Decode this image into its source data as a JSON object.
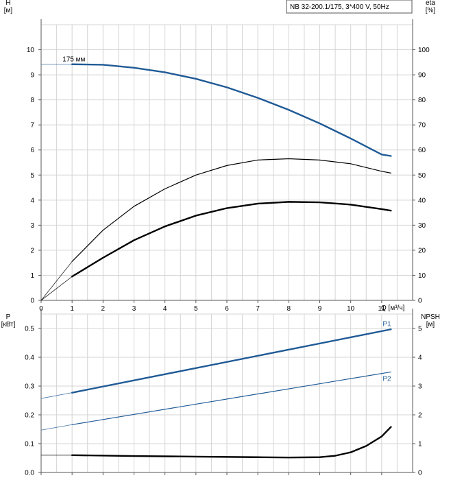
{
  "title": "NB 32-200.1/175, 3*400 V, 50Hz",
  "colors": {
    "blue": "#1f5a96",
    "black": "#000000",
    "grid": "#d4d4d4",
    "axis": "#555555"
  },
  "chart_data": [
    {
      "id": "head-efficiency",
      "type": "line",
      "title": "NB 32-200.1/175, 3*400 V, 50Hz",
      "xlabel": "Q [м³/ч]",
      "ylabel_left": "H\n[м]",
      "ylabel_right": "eta\n[%]",
      "xlim": [
        0,
        12
      ],
      "ylim_left": [
        0,
        11
      ],
      "ylim_right": [
        0,
        110
      ],
      "x_ticks": [
        "0",
        "1",
        "2",
        "3",
        "4",
        "5",
        "6",
        "7",
        "8",
        "9",
        "10",
        "11"
      ],
      "y_ticks_left": [
        "0",
        "1",
        "2",
        "3",
        "4",
        "5",
        "6",
        "7",
        "8",
        "9",
        "10"
      ],
      "y_ticks_right": [
        "0",
        "10",
        "20",
        "30",
        "40",
        "50",
        "60",
        "70",
        "80",
        "90",
        "100"
      ],
      "grid": true,
      "annotations": [
        {
          "text": "175 мм",
          "x": 1.0,
          "y": 9.45
        }
      ],
      "series": [
        {
          "axis": "left",
          "color": "#1f5a96",
          "style": "bold",
          "points": [
            [
              0,
              9.42
            ],
            [
              1.0,
              9.42
            ],
            [
              2,
              9.4
            ],
            [
              3,
              9.28
            ],
            [
              4,
              9.1
            ],
            [
              5,
              8.84
            ],
            [
              6,
              8.5
            ],
            [
              7,
              8.08
            ],
            [
              8,
              7.6
            ],
            [
              9,
              7.06
            ],
            [
              10,
              6.46
            ],
            [
              11,
              5.82
            ],
            [
              11.3,
              5.76
            ]
          ]
        },
        {
          "axis": "right",
          "color": "#000000",
          "style": "thin",
          "points": [
            [
              0,
              0
            ],
            [
              1.0,
              15.5
            ],
            [
              2,
              28
            ],
            [
              3,
              37.5
            ],
            [
              4,
              44.5
            ],
            [
              5,
              50
            ],
            [
              6,
              53.8
            ],
            [
              7,
              56
            ],
            [
              8,
              56.5
            ],
            [
              9,
              56
            ],
            [
              10,
              54.5
            ],
            [
              11,
              51.5
            ],
            [
              11.3,
              50.8
            ]
          ]
        },
        {
          "axis": "right",
          "color": "#000000",
          "style": "bold",
          "points": [
            [
              0,
              0
            ],
            [
              1.0,
              9.5
            ],
            [
              2,
              17
            ],
            [
              3,
              24
            ],
            [
              4,
              29.5
            ],
            [
              5,
              33.8
            ],
            [
              6,
              36.8
            ],
            [
              7,
              38.6
            ],
            [
              8,
              39.3
            ],
            [
              9,
              39.1
            ],
            [
              10,
              38.2
            ],
            [
              11,
              36.4
            ],
            [
              11.3,
              35.8
            ]
          ]
        }
      ]
    },
    {
      "id": "power-npsh",
      "type": "line",
      "xlabel": "",
      "ylabel_left": "P\n[кВт]",
      "ylabel_right": "NPSH\n[м]",
      "xlim": [
        0,
        12
      ],
      "ylim_left": [
        0,
        0.55
      ],
      "ylim_right": [
        0,
        5.5
      ],
      "y_ticks_left": [
        "0.0",
        "0.1",
        "0.2",
        "0.3",
        "0.4",
        "0.5"
      ],
      "y_ticks_right": [
        "0",
        "1",
        "2",
        "3",
        "4",
        "5"
      ],
      "grid": true,
      "series": [
        {
          "name": "P1",
          "axis": "left",
          "color": "#1f5a96",
          "style": "bold",
          "points": [
            [
              0,
              0.257
            ],
            [
              1.0,
              0.277
            ],
            [
              11.3,
              0.497
            ]
          ]
        },
        {
          "name": "P2",
          "axis": "left",
          "color": "#1f5a96",
          "style": "thin",
          "points": [
            [
              0,
              0.147
            ],
            [
              1.0,
              0.166
            ],
            [
              11.3,
              0.349
            ]
          ]
        },
        {
          "axis": "right",
          "color": "#000000",
          "style": "bold",
          "points": [
            [
              0,
              0.6
            ],
            [
              1.0,
              0.6
            ],
            [
              3,
              0.57
            ],
            [
              5,
              0.55
            ],
            [
              7,
              0.53
            ],
            [
              8,
              0.52
            ],
            [
              9,
              0.53
            ],
            [
              9.5,
              0.58
            ],
            [
              10,
              0.7
            ],
            [
              10.5,
              0.92
            ],
            [
              11,
              1.25
            ],
            [
              11.3,
              1.58
            ]
          ]
        }
      ]
    }
  ]
}
